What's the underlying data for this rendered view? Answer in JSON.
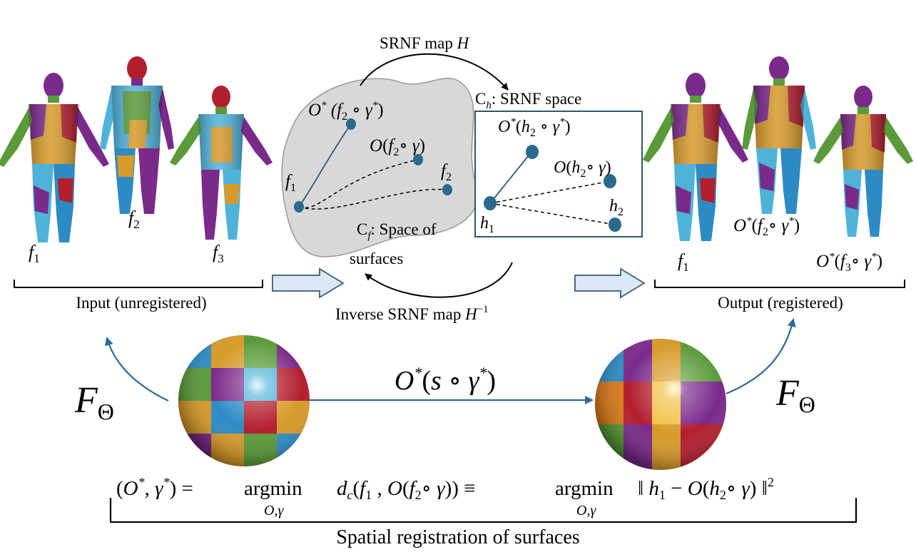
{
  "labels": {
    "srnf_map": "SRNF map H",
    "srnf_space": "C",
    "srnf_space_sub": "h",
    "srnf_space_rest": ": SRNF space",
    "surf_space": "C",
    "surf_space_sub": "f",
    "surf_space_rest": ": Space of",
    "surf_space_line2": "surfaces",
    "inverse_map": "Inverse SRNF map H",
    "inverse_sup": "−1",
    "input": "Input (unregistered)",
    "output": "Output (registered)",
    "spatial": "Spatial registration of surfaces",
    "sphere_map": "O*(s ∘ γ*)",
    "F_theta": "FΘ"
  },
  "input_labels": [
    "f1",
    "f2",
    "f3"
  ],
  "output_labels": [
    "f1",
    "O*(f2∘ γ*)",
    "O*(f3∘ γ*)"
  ],
  "surface_points": [
    "O* (f2 ∘ γ*)",
    "O(f2∘ γ)",
    "f1",
    "f2"
  ],
  "srnf_points": [
    "O*(h2 ∘ γ*)",
    "O(h2∘ γ)",
    "h1",
    "h2"
  ],
  "equation": "(O*, γ*) = argmin dc(f1 , O(f2∘ γ)) ≡ argmin ‖ h1 − O(h2∘ γ) ‖2",
  "equation_subscripts": [
    "O,γ",
    "O,γ"
  ],
  "palette": {
    "purple": "#7a2a8a",
    "green": "#5a9a3a",
    "gold": "#d79a2a",
    "red": "#b31e2e",
    "blue": "#2d8bc4",
    "cyan": "#4fb3d9",
    "dot": "#2a6a8a",
    "arrow": "#2a6a9a",
    "box_border": "#2a5a6a",
    "blob_fill": "#d8d8d8",
    "block_arrow_fill": "#dce8f4",
    "block_arrow_stroke": "#4a6a8a"
  }
}
